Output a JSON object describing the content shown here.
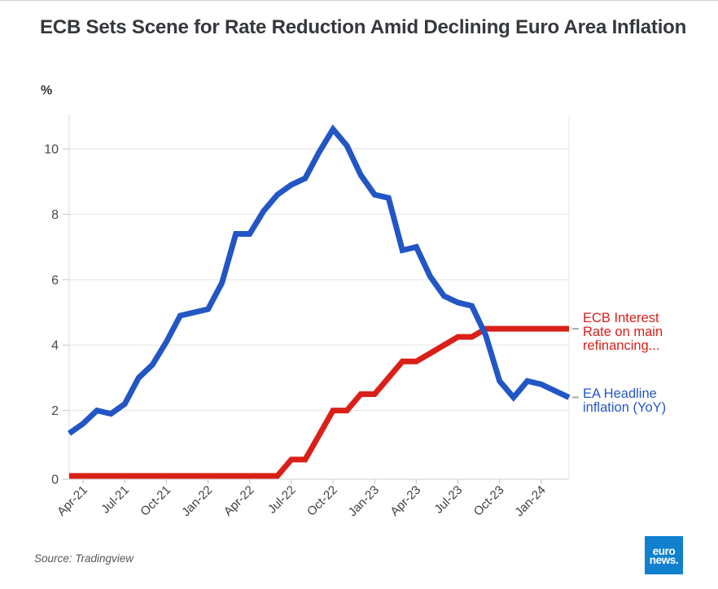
{
  "page": {
    "title": "ECB Sets Scene for Rate Reduction Amid Declining Euro Area Inflation",
    "y_axis_unit": "%",
    "source": "Source: Tradingview"
  },
  "logo": {
    "line1": "euro",
    "line2": "news."
  },
  "colors": {
    "inflation_blue": "#2356c5",
    "rate_red": "#d92018",
    "grid": "#e8e8e8",
    "axis_line": "#d9d9dc",
    "tick": "#c6c6c9",
    "axis_text": "#46494e",
    "x_axis_text": "#3c4043",
    "legend_dash": "#a8a8a8",
    "logo_bg": "#1080cf"
  },
  "chart_data": {
    "type": "line",
    "title": "ECB Sets Scene for Rate Reduction Amid Declining Euro Area Inflation",
    "ylabel": "%",
    "ylim": [
      0,
      11.1
    ],
    "grid": "horizontal",
    "legend_position": "right-of-line-ends",
    "x": [
      "Mar-21",
      "Apr-21",
      "May-21",
      "Jun-21",
      "Jul-21",
      "Aug-21",
      "Sep-21",
      "Oct-21",
      "Nov-21",
      "Dec-21",
      "Jan-22",
      "Feb-22",
      "Mar-22",
      "Apr-22",
      "May-22",
      "Jun-22",
      "Jul-22",
      "Aug-22",
      "Sep-22",
      "Oct-22",
      "Nov-22",
      "Dec-22",
      "Jan-23",
      "Feb-23",
      "Mar-23",
      "Apr-23",
      "May-23",
      "Jun-23",
      "Jul-23",
      "Aug-23",
      "Sep-23",
      "Oct-23",
      "Nov-23",
      "Dec-23",
      "Jan-24",
      "Feb-24",
      "Mar-24"
    ],
    "series": [
      {
        "name": "EA Headline inflation (YoY)",
        "label_lines": [
          "EA Headline",
          "inflation (YoY)"
        ],
        "color": "#2356c5",
        "values": [
          1.3,
          1.6,
          2.0,
          1.9,
          2.2,
          3.0,
          3.4,
          4.1,
          4.9,
          5.0,
          5.1,
          5.9,
          7.4,
          7.4,
          8.1,
          8.6,
          8.9,
          9.1,
          9.9,
          10.6,
          10.1,
          9.2,
          8.6,
          8.5,
          6.9,
          7.0,
          6.1,
          5.5,
          5.3,
          5.2,
          4.3,
          2.9,
          2.4,
          2.9,
          2.8,
          2.6,
          2.4
        ]
      },
      {
        "name": "ECB Interest Rate on main refinancing...",
        "label_lines": [
          "ECB Interest",
          "Rate on main",
          "refinancing..."
        ],
        "color": "#d92018",
        "values": [
          0,
          0,
          0,
          0,
          0,
          0,
          0,
          0,
          0,
          0,
          0,
          0,
          0,
          0,
          0,
          0,
          0.5,
          0.5,
          1.25,
          2.0,
          2.0,
          2.5,
          2.5,
          3.0,
          3.5,
          3.5,
          3.75,
          4.0,
          4.25,
          4.25,
          4.5,
          4.5,
          4.5,
          4.5,
          4.5,
          4.5,
          4.5
        ]
      }
    ],
    "x_tick_labels": [
      "Apr-21",
      "Jul-21",
      "Oct-21",
      "Jan-22",
      "Apr-22",
      "Jul-22",
      "Oct-22",
      "Jan-23",
      "Apr-23",
      "Jul-23",
      "Oct-23",
      "Jan-24"
    ],
    "x_tick_indices": [
      1,
      4,
      7,
      10,
      13,
      16,
      19,
      22,
      25,
      28,
      31,
      34
    ],
    "y_ticks": [
      0,
      2,
      4,
      6,
      8,
      10
    ]
  }
}
